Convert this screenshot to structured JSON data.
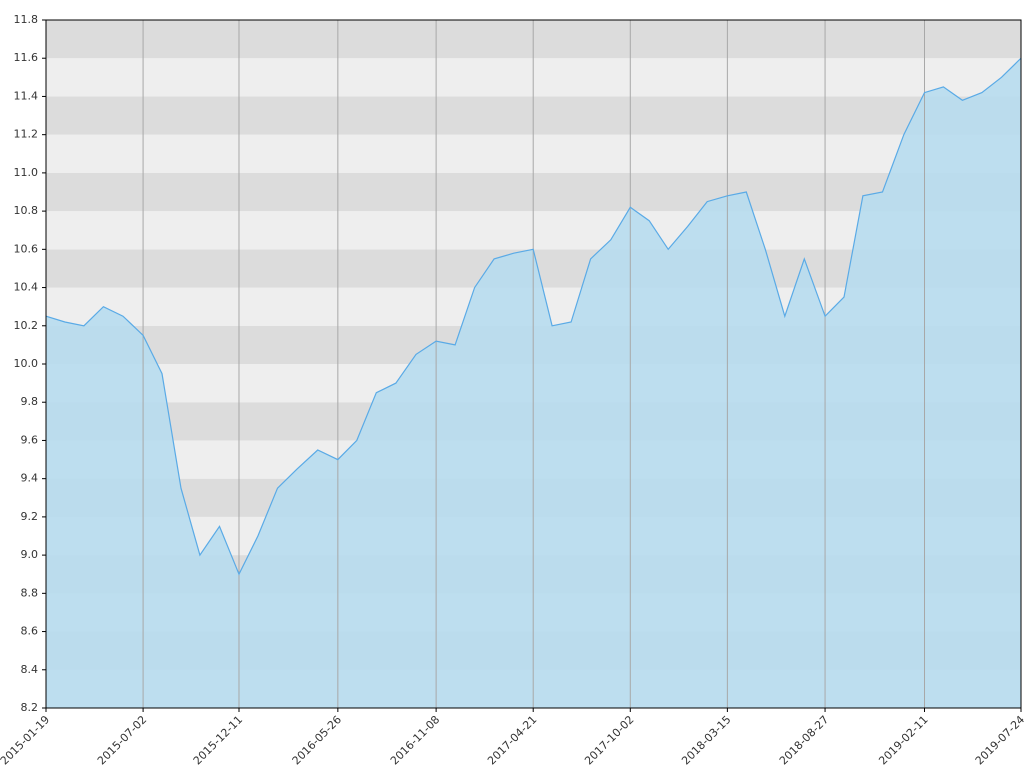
{
  "chart_data": {
    "type": "area",
    "x": [
      "2015-01-19",
      "2015-02-20",
      "2015-03-24",
      "2015-04-26",
      "2015-05-29",
      "2015-07-02",
      "2015-08-03",
      "2015-09-04",
      "2015-10-06",
      "2015-11-08",
      "2015-12-11",
      "2016-01-12",
      "2016-02-14",
      "2016-03-18",
      "2016-04-22",
      "2016-05-26",
      "2016-06-27",
      "2016-07-30",
      "2016-09-01",
      "2016-10-05",
      "2016-11-08",
      "2016-12-10",
      "2017-01-12",
      "2017-02-14",
      "2017-03-19",
      "2017-04-21",
      "2017-05-23",
      "2017-06-24",
      "2017-07-27",
      "2017-08-30",
      "2017-10-02",
      "2017-11-03",
      "2017-12-05",
      "2018-01-07",
      "2018-02-09",
      "2018-03-15",
      "2018-04-16",
      "2018-05-18",
      "2018-06-20",
      "2018-07-23",
      "2018-08-27",
      "2018-09-28",
      "2018-10-30",
      "2018-12-02",
      "2019-01-07",
      "2019-02-11",
      "2019-03-15",
      "2019-04-16",
      "2019-05-19",
      "2019-06-21",
      "2019-07-24"
    ],
    "values": [
      10.25,
      10.22,
      10.2,
      10.3,
      10.25,
      10.15,
      9.95,
      9.35,
      9.0,
      9.15,
      8.9,
      9.1,
      9.35,
      9.45,
      9.55,
      9.5,
      9.6,
      9.85,
      9.9,
      10.05,
      10.12,
      10.1,
      10.4,
      10.55,
      10.58,
      10.6,
      10.2,
      10.22,
      10.55,
      10.65,
      10.82,
      10.75,
      10.6,
      10.72,
      10.85,
      10.88,
      10.9,
      10.6,
      10.25,
      10.55,
      10.25,
      10.35,
      10.88,
      10.9,
      11.2,
      11.42,
      11.45,
      11.38,
      11.42,
      11.5,
      11.6
    ],
    "color": "#5aaae6",
    "area_color": "#b7dcee",
    "xlim": [
      "2015-01-19",
      "2019-07-24"
    ],
    "xticks": [
      "2015-01-19",
      "2015-07-02",
      "2015-12-11",
      "2016-05-26",
      "2016-11-08",
      "2017-04-21",
      "2017-10-02",
      "2018-03-15",
      "2018-08-27",
      "2019-02-11",
      "2019-07-24"
    ],
    "ylim": [
      8.2,
      11.8
    ],
    "yticks": [
      8.2,
      8.4,
      8.6,
      8.8,
      {
        "value": 9,
        "label": "9.0"
      },
      9.2,
      9.4,
      9.6,
      9.8,
      {
        "value": 10,
        "label": "10.0"
      },
      10.2,
      10.4,
      10.6,
      10.8,
      {
        "value": 11,
        "label": "11.0"
      },
      11.2,
      11.4,
      11.6,
      11.8
    ],
    "grid": true
  }
}
